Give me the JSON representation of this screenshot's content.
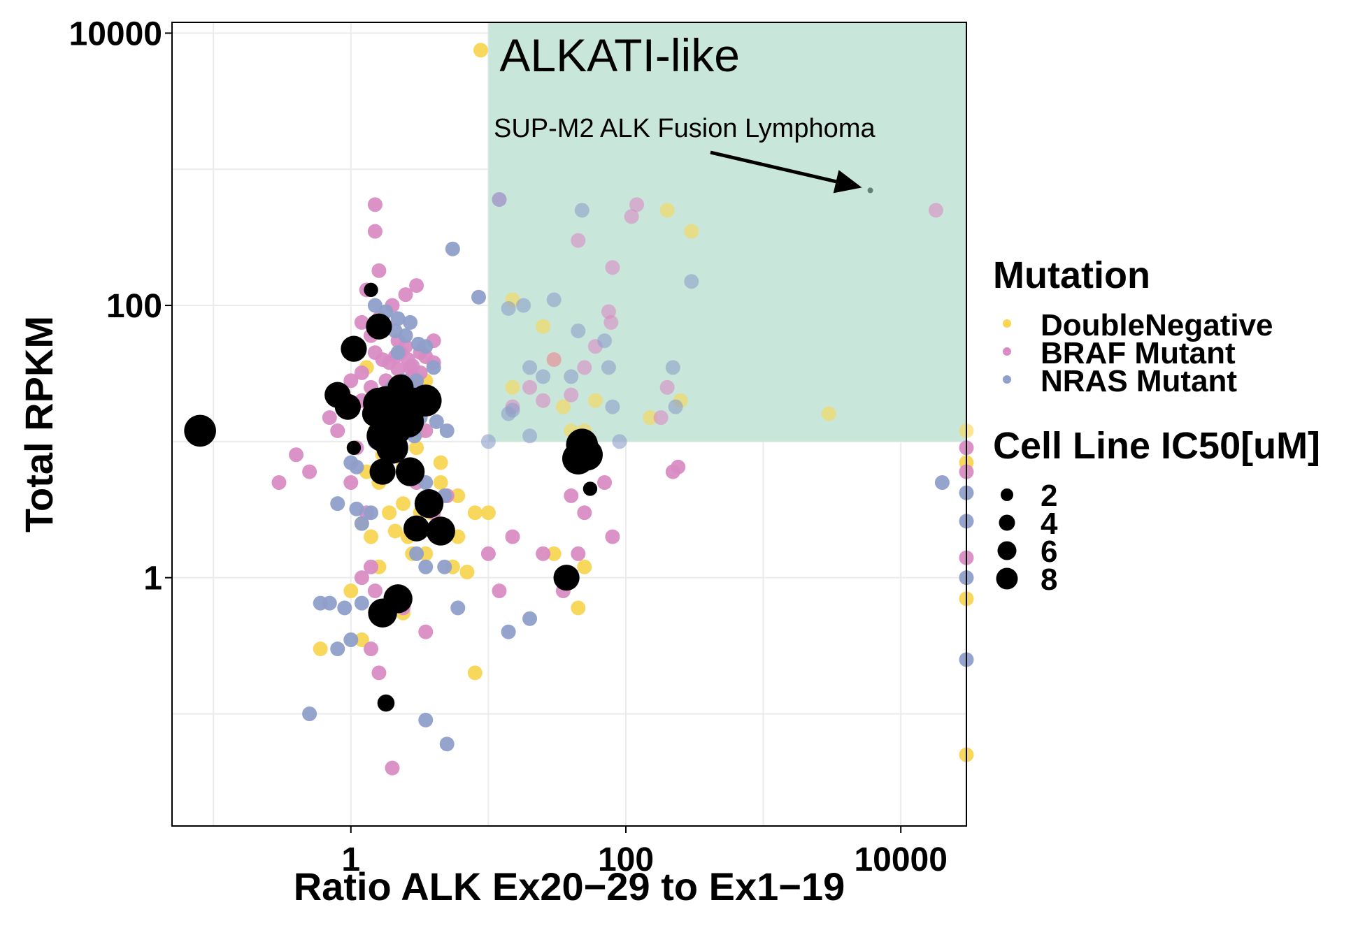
{
  "chart_data": {
    "type": "scatter",
    "title": "",
    "xlabel": "Ratio ALK Ex20−29 to Ex1−19",
    "ylabel": "Total RPKM",
    "x_scale": "log10",
    "y_scale": "log10",
    "xlim": [
      0.05,
      30000
    ],
    "ylim": [
      0.015,
      12000
    ],
    "x_ticks": [
      1,
      100,
      10000
    ],
    "x_tick_labels": [
      "1",
      "100",
      "10000"
    ],
    "y_ticks": [
      1,
      100,
      10000
    ],
    "y_tick_labels": [
      "1",
      "100",
      "10000"
    ],
    "grid": true,
    "highlight_region": {
      "label": "ALKATI-like",
      "x_min": 10,
      "x_max": 30000,
      "y_min": 10,
      "y_max": 12000,
      "color": "#c9e6da"
    },
    "annotation": {
      "text": "SUP-M2 ALK Fusion Lymphoma",
      "arrow_to": [
        6000,
        700
      ]
    },
    "legend_position": "right",
    "legend": {
      "color_title": "Mutation",
      "color_entries": [
        {
          "label": "DoubleNegative",
          "color": "#f7d654"
        },
        {
          "label": "BRAF Mutant",
          "color": "#d98cc4"
        },
        {
          "label": "NRAS Mutant",
          "color": "#8f9fc9"
        }
      ],
      "size_title": "Cell Line IC50[uM]",
      "size_entries": [
        {
          "label": "2",
          "value": 2
        },
        {
          "label": "4",
          "value": 4
        },
        {
          "label": "6",
          "value": 6
        },
        {
          "label": "8",
          "value": 8
        }
      ]
    },
    "colors": {
      "DoubleNegative": "#f7d654",
      "BRAF Mutant": "#d98cc4",
      "NRAS Mutant": "#8f9fc9",
      "IC50 known": "#000000",
      "SUP-M2": "#2b3d33"
    },
    "series": [
      {
        "name": "DoubleNegative",
        "points": [
          [
            8.8,
            7500
          ],
          [
            2.0,
            22
          ],
          [
            1.3,
            35
          ],
          [
            2.8,
            25
          ],
          [
            3.5,
            28
          ],
          [
            4.0,
            20
          ],
          [
            2.5,
            18
          ],
          [
            1.8,
            13
          ],
          [
            1.5,
            12
          ],
          [
            2.2,
            10
          ],
          [
            3.0,
            9
          ],
          [
            4.5,
            7
          ],
          [
            5.0,
            4
          ],
          [
            3.2,
            3
          ],
          [
            2.6,
            2
          ],
          [
            6.0,
            2
          ],
          [
            1.3,
            6
          ],
          [
            1.6,
            5
          ],
          [
            2.4,
            3.5
          ],
          [
            1.9,
            3
          ],
          [
            2.1,
            2.2
          ],
          [
            5.5,
            1.2
          ],
          [
            7.0,
            1.1
          ],
          [
            3.5,
            1.5
          ],
          [
            1.4,
            2
          ],
          [
            2.8,
            1.5
          ],
          [
            3.8,
            3
          ],
          [
            4.2,
            2
          ],
          [
            1.6,
            1.2
          ],
          [
            2.0,
            0.6
          ],
          [
            2.4,
            0.55
          ],
          [
            1.2,
            0.35
          ],
          [
            0.6,
            0.3
          ],
          [
            8.0,
            0.2
          ],
          [
            1.0,
            0.8
          ],
          [
            200,
            500
          ],
          [
            300,
            350
          ],
          [
            15,
            110
          ],
          [
            25,
            70
          ],
          [
            30,
            40
          ],
          [
            15,
            25
          ],
          [
            60,
            20
          ],
          [
            40,
            12
          ],
          [
            50,
            12
          ],
          [
            35,
            18
          ],
          [
            150,
            15
          ],
          [
            250,
            20
          ],
          [
            3000,
            16
          ],
          [
            1.2,
            2.5
          ],
          [
            4.5,
            5
          ],
          [
            6.0,
            4
          ],
          [
            8.0,
            3
          ],
          [
            2.4,
            6.5
          ],
          [
            1.7,
            8
          ],
          [
            3.2,
            12
          ],
          [
            10,
            3
          ],
          [
            30,
            1.5
          ],
          [
            45,
            0.6
          ],
          [
            50,
            1.2
          ],
          [
            30000,
            0.05
          ],
          [
            30000,
            0.7
          ],
          [
            30000,
            7
          ],
          [
            30000,
            12
          ]
        ]
      },
      {
        "name": "BRAF Mutant",
        "points": [
          [
            1.5,
            550
          ],
          [
            1.5,
            350
          ],
          [
            1.6,
            180
          ],
          [
            1.3,
            130
          ],
          [
            1.4,
            60
          ],
          [
            1.6,
            80
          ],
          [
            2.0,
            100
          ],
          [
            2.5,
            120
          ],
          [
            3.0,
            140
          ],
          [
            1.2,
            75
          ],
          [
            1.8,
            70
          ],
          [
            2.2,
            55
          ],
          [
            2.6,
            40
          ],
          [
            3.2,
            45
          ],
          [
            4.0,
            38
          ],
          [
            2.8,
            30
          ],
          [
            1.4,
            25
          ],
          [
            1.9,
            22
          ],
          [
            2.4,
            18
          ],
          [
            3.0,
            16
          ],
          [
            3.5,
            12
          ],
          [
            1.2,
            20
          ],
          [
            1.6,
            15
          ],
          [
            2.0,
            10
          ],
          [
            1.8,
            8
          ],
          [
            2.6,
            6
          ],
          [
            3.0,
            5
          ],
          [
            4.0,
            3
          ],
          [
            5.0,
            4
          ],
          [
            1.1,
            9
          ],
          [
            0.8,
            12
          ],
          [
            0.7,
            15
          ],
          [
            0.5,
            6
          ],
          [
            0.3,
            5
          ],
          [
            0.4,
            8
          ],
          [
            1.0,
            5
          ],
          [
            1.3,
            3
          ],
          [
            1.4,
            1.2
          ],
          [
            1.2,
            1
          ],
          [
            1.5,
            0.8
          ],
          [
            2.4,
            0.6
          ],
          [
            3.5,
            0.4
          ],
          [
            1.4,
            0.3
          ],
          [
            1.6,
            0.2
          ],
          [
            2.0,
            0.04
          ],
          [
            10,
            1.5
          ],
          [
            12,
            0.8
          ],
          [
            15,
            2
          ],
          [
            25,
            1.5
          ],
          [
            35,
            0.8
          ],
          [
            40,
            4
          ],
          [
            45,
            1.5
          ],
          [
            50,
            3
          ],
          [
            70,
            5
          ],
          [
            80,
            2
          ],
          [
            12,
            600
          ],
          [
            120,
            550
          ],
          [
            110,
            450
          ],
          [
            45,
            300
          ],
          [
            80,
            190
          ],
          [
            75,
            90
          ],
          [
            78,
            75
          ],
          [
            60,
            50
          ],
          [
            30,
            40
          ],
          [
            25,
            20
          ],
          [
            40,
            22
          ],
          [
            20,
            25
          ],
          [
            15,
            18
          ],
          [
            50,
            35
          ],
          [
            200,
            25
          ],
          [
            180,
            15
          ],
          [
            220,
            6
          ],
          [
            240,
            6.5
          ],
          [
            18000,
            500
          ],
          [
            30000,
            9
          ],
          [
            30000,
            1.4
          ],
          [
            30000,
            6
          ],
          [
            1.7,
            40
          ],
          [
            2.3,
            45
          ],
          [
            2.7,
            35
          ],
          [
            3.2,
            32
          ],
          [
            1.9,
            38
          ],
          [
            2.1,
            42
          ],
          [
            2.5,
            50
          ],
          [
            3.0,
            25
          ],
          [
            1.5,
            45
          ],
          [
            1.0,
            28
          ],
          [
            1.2,
            32
          ],
          [
            1.8,
            28
          ],
          [
            2.2,
            34
          ],
          [
            2.8,
            36
          ],
          [
            3.5,
            42
          ],
          [
            4.0,
            55
          ]
        ]
      },
      {
        "name": "NRAS Mutant",
        "points": [
          [
            5.5,
            260
          ],
          [
            8.5,
            115
          ],
          [
            2.5,
            60
          ],
          [
            2.2,
            45
          ],
          [
            3.5,
            50
          ],
          [
            4.0,
            35
          ],
          [
            3.0,
            28
          ],
          [
            2.0,
            25
          ],
          [
            1.8,
            20
          ],
          [
            2.6,
            18
          ],
          [
            3.2,
            15
          ],
          [
            4.2,
            14
          ],
          [
            5.0,
            12
          ],
          [
            1.5,
            10
          ],
          [
            2.0,
            8
          ],
          [
            2.8,
            6
          ],
          [
            3.5,
            5
          ],
          [
            4.8,
            4
          ],
          [
            1.2,
            2.5
          ],
          [
            1.4,
            3
          ],
          [
            0.8,
            3.5
          ],
          [
            1.0,
            7
          ],
          [
            1.1,
            6.5
          ],
          [
            3.0,
            1.5
          ],
          [
            3.5,
            1.2
          ],
          [
            4.8,
            1.2
          ],
          [
            6.0,
            0.6
          ],
          [
            0.6,
            0.65
          ],
          [
            0.7,
            0.65
          ],
          [
            1.2,
            0.65
          ],
          [
            0.8,
            0.3
          ],
          [
            0.5,
            0.1
          ],
          [
            3.5,
            0.09
          ],
          [
            5.0,
            0.06
          ],
          [
            12,
            600
          ],
          [
            18,
            100
          ],
          [
            14,
            95
          ],
          [
            30,
            110
          ],
          [
            45,
            65
          ],
          [
            70,
            55
          ],
          [
            75,
            35
          ],
          [
            20,
            35
          ],
          [
            25,
            30
          ],
          [
            40,
            30
          ],
          [
            80,
            18
          ],
          [
            300,
            150
          ],
          [
            220,
            35
          ],
          [
            230,
            18
          ],
          [
            90,
            10
          ],
          [
            10,
            10
          ],
          [
            20,
            11
          ],
          [
            15,
            17
          ],
          [
            14,
            16
          ],
          [
            20000,
            5
          ],
          [
            30000,
            4.2
          ],
          [
            30000,
            1
          ],
          [
            30000,
            2.6
          ],
          [
            30000,
            0.25
          ],
          [
            48,
            500
          ],
          [
            1.6,
            70
          ],
          [
            2.1,
            65
          ],
          [
            1.8,
            90
          ],
          [
            1.5,
            100
          ],
          [
            2.2,
            80
          ],
          [
            2.7,
            75
          ],
          [
            3.1,
            52
          ],
          [
            2.4,
            28
          ],
          [
            1.1,
            3.2
          ],
          [
            2.1,
            10
          ],
          [
            2.9,
            11
          ],
          [
            14,
            0.4
          ],
          [
            20,
            0.5
          ],
          [
            0.9,
            0.6
          ],
          [
            1.0,
            0.35
          ]
        ]
      },
      {
        "name": "IC50",
        "points": [
          [
            0.08,
            12,
            8
          ],
          [
            1.05,
            48,
            6
          ],
          [
            1.6,
            70,
            6
          ],
          [
            0.8,
            22,
            6
          ],
          [
            0.95,
            18,
            6
          ],
          [
            1.4,
            130,
            2
          ],
          [
            1.4,
            20,
            2
          ],
          [
            1.05,
            9,
            2
          ],
          [
            1.5,
            16,
            6
          ],
          [
            1.7,
            18,
            8
          ],
          [
            1.6,
            19,
            8
          ],
          [
            1.8,
            20,
            7
          ],
          [
            1.7,
            11,
            8
          ],
          [
            2.3,
            25,
            6
          ],
          [
            2.5,
            17,
            7
          ],
          [
            2.9,
            19,
            8
          ],
          [
            3.5,
            20,
            8
          ],
          [
            2.6,
            14,
            8
          ],
          [
            2.2,
            12,
            6
          ],
          [
            2.0,
            9,
            8
          ],
          [
            1.7,
            6,
            6
          ],
          [
            2.7,
            6,
            7
          ],
          [
            3.7,
            3.5,
            7
          ],
          [
            3.0,
            2.3,
            6
          ],
          [
            4.5,
            2.2,
            7
          ],
          [
            1.7,
            0.55,
            7
          ],
          [
            2.2,
            0.7,
            7
          ],
          [
            1.8,
            0.12,
            3
          ],
          [
            37,
            1,
            6
          ],
          [
            45,
            7.5,
            8
          ],
          [
            52,
            8,
            8
          ],
          [
            55,
            4.5,
            2
          ],
          [
            48,
            9.5,
            8
          ],
          [
            1.8,
            19,
            3
          ]
        ]
      },
      {
        "name": "SUP-M2",
        "points": [
          [
            6000,
            700,
            1
          ]
        ]
      }
    ]
  }
}
